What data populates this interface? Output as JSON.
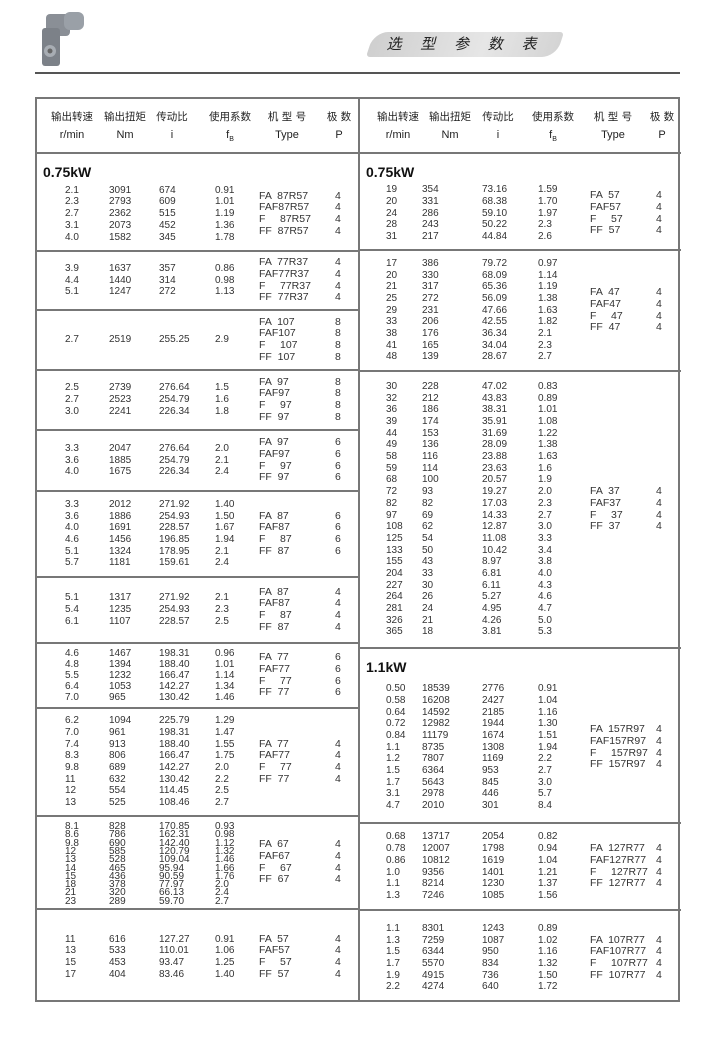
{
  "header": {
    "title": "选 型 参 数 表"
  },
  "columns": {
    "cn": [
      "输出转速",
      "输出扭矩",
      "传动比",
      "使用系数",
      "机 型 号",
      "极  数"
    ],
    "en": [
      "r/min",
      "Nm",
      "i",
      "f",
      "Type",
      "P"
    ],
    "en_sub": "B"
  },
  "left": {
    "groups": [
      {
        "power": "0.75kW",
        "rows": [
          [
            "2.1",
            "3091",
            "674",
            "0.91"
          ],
          [
            "2.3",
            "2793",
            "609",
            "1.01"
          ],
          [
            "2.7",
            "2362",
            "515",
            "1.19"
          ],
          [
            "3.1",
            "2073",
            "452",
            "1.36"
          ],
          [
            "4.0",
            "1582",
            "345",
            "1.78"
          ]
        ],
        "types": [
          {
            "t": "FA  87R57",
            "p": "4"
          },
          {
            "t": "FAF87R57",
            "p": "4"
          },
          {
            "t": "F     87R57",
            "p": "4"
          },
          {
            "t": "FF  87R57",
            "p": "4"
          }
        ]
      },
      {
        "rows": [
          [
            "3.9",
            "1637",
            "357",
            "0.86"
          ],
          [
            "4.4",
            "1440",
            "314",
            "0.98"
          ],
          [
            "5.1",
            "1247",
            "272",
            "1.13"
          ]
        ],
        "types": [
          {
            "t": "FA  77R37",
            "p": "4"
          },
          {
            "t": "FAF77R37",
            "p": "4"
          },
          {
            "t": "F     77R37",
            "p": "4"
          },
          {
            "t": "FF  77R37",
            "p": "4"
          }
        ]
      },
      {
        "rows": [
          [
            "2.7",
            "2519",
            "255.25",
            "2.9"
          ]
        ],
        "types": [
          {
            "t": "FA  107",
            "p": "8"
          },
          {
            "t": "FAF107",
            "p": "8"
          },
          {
            "t": "F     107",
            "p": "8"
          },
          {
            "t": "FF  107",
            "p": "8"
          }
        ]
      },
      {
        "rows": [
          [
            "2.5",
            "2739",
            "276.64",
            "1.5"
          ],
          [
            "2.7",
            "2523",
            "254.79",
            "1.6"
          ],
          [
            "3.0",
            "2241",
            "226.34",
            "1.8"
          ]
        ],
        "types": [
          {
            "t": "FA  97",
            "p": "8"
          },
          {
            "t": "FAF97",
            "p": "8"
          },
          {
            "t": "F     97",
            "p": "8"
          },
          {
            "t": "FF  97",
            "p": "8"
          }
        ]
      },
      {
        "rows": [
          [
            "3.3",
            "2047",
            "276.64",
            "2.0"
          ],
          [
            "3.6",
            "1885",
            "254.79",
            "2.1"
          ],
          [
            "4.0",
            "1675",
            "226.34",
            "2.4"
          ]
        ],
        "types": [
          {
            "t": "FA  97",
            "p": "6"
          },
          {
            "t": "FAF97",
            "p": "6"
          },
          {
            "t": "F     97",
            "p": "6"
          },
          {
            "t": "FF  97",
            "p": "6"
          }
        ]
      },
      {
        "rows": [
          [
            "3.3",
            "2012",
            "271.92",
            "1.40"
          ],
          [
            "3.6",
            "1886",
            "254.93",
            "1.50"
          ],
          [
            "4.0",
            "1691",
            "228.57",
            "1.67"
          ],
          [
            "4.6",
            "1456",
            "196.85",
            "1.94"
          ],
          [
            "5.1",
            "1324",
            "178.95",
            "2.1"
          ],
          [
            "5.7",
            "1181",
            "159.61",
            "2.4"
          ]
        ],
        "types": [
          {
            "t": "FA  87",
            "p": "6"
          },
          {
            "t": "FAF87",
            "p": "6"
          },
          {
            "t": "F     87",
            "p": "6"
          },
          {
            "t": "FF  87",
            "p": "6"
          }
        ]
      },
      {
        "rows": [
          [
            "5.1",
            "1317",
            "271.92",
            "2.1"
          ],
          [
            "5.4",
            "1235",
            "254.93",
            "2.3"
          ],
          [
            "6.1",
            "1107",
            "228.57",
            "2.5"
          ]
        ],
        "types": [
          {
            "t": "FA  87",
            "p": "4"
          },
          {
            "t": "FAF87",
            "p": "4"
          },
          {
            "t": "F     87",
            "p": "4"
          },
          {
            "t": "FF  87",
            "p": "4"
          }
        ]
      },
      {
        "rows": [
          [
            "4.6",
            "1467",
            "198.31",
            "0.96"
          ],
          [
            "4.8",
            "1394",
            "188.40",
            "1.01"
          ],
          [
            "5.5",
            "1232",
            "166.47",
            "1.14"
          ],
          [
            "6.4",
            "1053",
            "142.27",
            "1.34"
          ],
          [
            "7.0",
            "965",
            "130.42",
            "1.46"
          ]
        ],
        "types": [
          {
            "t": "FA  77",
            "p": "6"
          },
          {
            "t": "FAF77",
            "p": "6"
          },
          {
            "t": "F     77",
            "p": "6"
          },
          {
            "t": "FF  77",
            "p": "6"
          }
        ]
      },
      {
        "rows": [
          [
            "6.2",
            "1094",
            "225.79",
            "1.29"
          ],
          [
            "7.0",
            "961",
            "198.31",
            "1.47"
          ],
          [
            "7.4",
            "913",
            "188.40",
            "1.55"
          ],
          [
            "8.3",
            "806",
            "166.47",
            "1.75"
          ],
          [
            "9.8",
            "689",
            "142.27",
            "2.0"
          ],
          [
            "11",
            "632",
            "130.42",
            "2.2"
          ],
          [
            "12",
            "554",
            "114.45",
            "2.5"
          ],
          [
            "13",
            "525",
            "108.46",
            "2.7"
          ]
        ],
        "types": [
          {
            "t": "FA  77",
            "p": "4"
          },
          {
            "t": "FAF77",
            "p": "4"
          },
          {
            "t": "F     77",
            "p": "4"
          },
          {
            "t": "FF  77",
            "p": "4"
          }
        ]
      },
      {
        "rows": [
          [
            "8.1",
            "828",
            "170.85",
            "0.93"
          ],
          [
            "8.6",
            "786",
            "162.31",
            "0.98"
          ],
          [
            "9.8",
            "690",
            "142.40",
            "1.12"
          ],
          [
            "12",
            "585",
            "120.79",
            "1.32"
          ],
          [
            "13",
            "528",
            "109.04",
            "1.46"
          ],
          [
            "14",
            "465",
            "95.94",
            "1.66"
          ],
          [
            "15",
            "436",
            "90.59",
            "1.76"
          ],
          [
            "18",
            "378",
            "77.97",
            "2.0"
          ],
          [
            "21",
            "320",
            "66.13",
            "2.4"
          ],
          [
            "23",
            "289",
            "59.70",
            "2.7"
          ]
        ],
        "types": [
          {
            "t": "FA  67",
            "p": "4"
          },
          {
            "t": "FAF67",
            "p": "4"
          },
          {
            "t": "F     67",
            "p": "4"
          },
          {
            "t": "FF  67",
            "p": "4"
          }
        ]
      },
      {
        "rows": [
          [
            "11",
            "616",
            "127.27",
            "0.91"
          ],
          [
            "13",
            "533",
            "110.01",
            "1.06"
          ],
          [
            "15",
            "453",
            "93.47",
            "1.25"
          ],
          [
            "17",
            "404",
            "83.46",
            "1.40"
          ]
        ],
        "types": [
          {
            "t": "FA  57",
            "p": "4"
          },
          {
            "t": "FAF57",
            "p": "4"
          },
          {
            "t": "F     57",
            "p": "4"
          },
          {
            "t": "FF  57",
            "p": "4"
          }
        ]
      }
    ]
  },
  "right": {
    "groups": [
      {
        "power": "0.75kW",
        "rows": [
          [
            "19",
            "354",
            "73.16",
            "1.59"
          ],
          [
            "20",
            "331",
            "68.38",
            "1.70"
          ],
          [
            "24",
            "286",
            "59.10",
            "1.97"
          ],
          [
            "28",
            "243",
            "50.22",
            "2.3"
          ],
          [
            "31",
            "217",
            "44.84",
            "2.6"
          ]
        ],
        "types": [
          {
            "t": "FA  57",
            "p": "4"
          },
          {
            "t": "FAF57",
            "p": "4"
          },
          {
            "t": "F     57",
            "p": "4"
          },
          {
            "t": "FF  57",
            "p": "4"
          }
        ]
      },
      {
        "rows": [
          [
            "17",
            "386",
            "79.72",
            "0.97"
          ],
          [
            "20",
            "330",
            "68.09",
            "1.14"
          ],
          [
            "21",
            "317",
            "65.36",
            "1.19"
          ],
          [
            "25",
            "272",
            "56.09",
            "1.38"
          ],
          [
            "29",
            "231",
            "47.66",
            "1.63"
          ],
          [
            "33",
            "206",
            "42.55",
            "1.82"
          ],
          [
            "38",
            "176",
            "36.34",
            "2.1"
          ],
          [
            "41",
            "165",
            "34.04",
            "2.3"
          ],
          [
            "48",
            "139",
            "28.67",
            "2.7"
          ]
        ],
        "types": [
          {
            "t": "FA  47",
            "p": "4"
          },
          {
            "t": "FAF47",
            "p": "4"
          },
          {
            "t": "F     47",
            "p": "4"
          },
          {
            "t": "FF  47",
            "p": "4"
          }
        ]
      },
      {
        "rows": [
          [
            "30",
            "228",
            "47.02",
            "0.83"
          ],
          [
            "32",
            "212",
            "43.83",
            "0.89"
          ],
          [
            "36",
            "186",
            "38.31",
            "1.01"
          ],
          [
            "39",
            "174",
            "35.91",
            "1.08"
          ],
          [
            "44",
            "153",
            "31.69",
            "1.22"
          ],
          [
            "49",
            "136",
            "28.09",
            "1.38"
          ],
          [
            "58",
            "116",
            "23.88",
            "1.63"
          ],
          [
            "59",
            "114",
            "23.63",
            "1.6"
          ],
          [
            "68",
            "100",
            "20.57",
            "1.9"
          ],
          [
            "72",
            "93",
            "19.27",
            "2.0"
          ],
          [
            "82",
            "82",
            "17.03",
            "2.3"
          ],
          [
            "97",
            "69",
            "14.33",
            "2.7"
          ],
          [
            "108",
            "62",
            "12.87",
            "3.0"
          ],
          [
            "125",
            "54",
            "11.08",
            "3.3"
          ],
          [
            "133",
            "50",
            "10.42",
            "3.4"
          ],
          [
            "155",
            "43",
            "8.97",
            "3.8"
          ],
          [
            "204",
            "33",
            "6.81",
            "4.0"
          ],
          [
            "227",
            "30",
            "6.11",
            "4.3"
          ],
          [
            "264",
            "26",
            "5.27",
            "4.6"
          ],
          [
            "281",
            "24",
            "4.95",
            "4.7"
          ],
          [
            "326",
            "21",
            "4.26",
            "5.0"
          ],
          [
            "365",
            "18",
            "3.81",
            "5.3"
          ]
        ],
        "types": [
          {
            "t": "FA  37",
            "p": "4"
          },
          {
            "t": "FAF37",
            "p": "4"
          },
          {
            "t": "F     37",
            "p": "4"
          },
          {
            "t": "FF  37",
            "p": "4"
          }
        ]
      },
      {
        "power": "1.1kW",
        "rows": [
          [
            "0.50",
            "18539",
            "2776",
            "0.91"
          ],
          [
            "0.58",
            "16208",
            "2427",
            "1.04"
          ],
          [
            "0.64",
            "14592",
            "2185",
            "1.16"
          ],
          [
            "0.72",
            "12982",
            "1944",
            "1.30"
          ],
          [
            "0.84",
            "11179",
            "1674",
            "1.51"
          ],
          [
            "1.1",
            "8735",
            "1308",
            "1.94"
          ],
          [
            "1.2",
            "7807",
            "1169",
            "2.2"
          ],
          [
            "1.5",
            "6364",
            "953",
            "2.7"
          ],
          [
            "1.7",
            "5643",
            "845",
            "3.0"
          ],
          [
            "3.1",
            "2978",
            "446",
            "5.7"
          ],
          [
            "4.7",
            "2010",
            "301",
            "8.4"
          ]
        ],
        "types": [
          {
            "t": "FA  157R97",
            "p": "4"
          },
          {
            "t": "FAF157R97",
            "p": "4"
          },
          {
            "t": "F     157R97",
            "p": "4"
          },
          {
            "t": "FF  157R97",
            "p": "4"
          }
        ]
      },
      {
        "rows": [
          [
            "0.68",
            "13717",
            "2054",
            "0.82"
          ],
          [
            "0.78",
            "12007",
            "1798",
            "0.94"
          ],
          [
            "0.86",
            "10812",
            "1619",
            "1.04"
          ],
          [
            "1.0",
            "9356",
            "1401",
            "1.21"
          ],
          [
            "1.1",
            "8214",
            "1230",
            "1.37"
          ],
          [
            "1.3",
            "7246",
            "1085",
            "1.56"
          ]
        ],
        "types": [
          {
            "t": "FA  127R77",
            "p": "4"
          },
          {
            "t": "FAF127R77",
            "p": "4"
          },
          {
            "t": "F     127R77",
            "p": "4"
          },
          {
            "t": "FF  127R77",
            "p": "4"
          }
        ]
      },
      {
        "rows": [
          [
            "1.1",
            "8301",
            "1243",
            "0.89"
          ],
          [
            "1.3",
            "7259",
            "1087",
            "1.02"
          ],
          [
            "1.5",
            "6344",
            "950",
            "1.16"
          ],
          [
            "1.7",
            "5570",
            "834",
            "1.32"
          ],
          [
            "1.9",
            "4915",
            "736",
            "1.50"
          ],
          [
            "2.2",
            "4274",
            "640",
            "1.72"
          ]
        ],
        "types": [
          {
            "t": "FA  107R77",
            "p": "4"
          },
          {
            "t": "FAF107R77",
            "p": "4"
          },
          {
            "t": "F     107R77",
            "p": "4"
          },
          {
            "t": "FF  107R77",
            "p": "4"
          }
        ]
      }
    ]
  }
}
